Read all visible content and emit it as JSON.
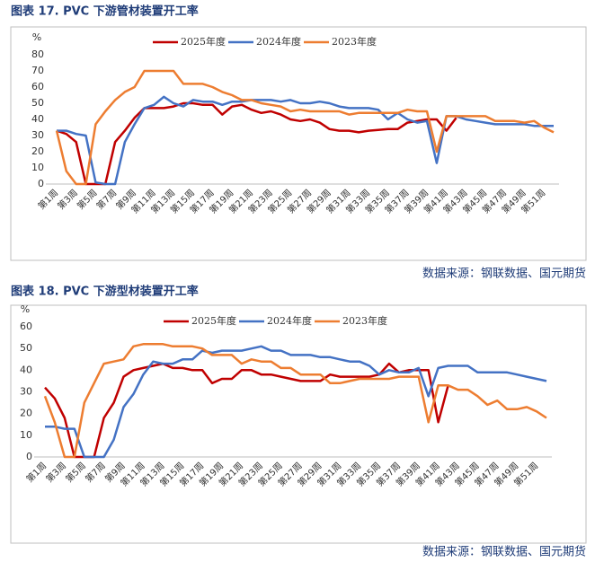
{
  "chart_data": [
    {
      "type": "line",
      "title": "图表 17. PVC 下游管材装置开工率",
      "source": "数据来源：钢联数据、国元期货",
      "y_unit": "%",
      "categories": [
        "第1周",
        null,
        "第3周",
        null,
        "第5周",
        null,
        "第7周",
        null,
        "第9周",
        null,
        "第11周",
        null,
        "第13周",
        null,
        "第15周",
        null,
        "第17周",
        null,
        "第19周",
        null,
        "第21周",
        null,
        "第23周",
        null,
        "第25周",
        null,
        "第27周",
        null,
        "第29周",
        null,
        "第31周",
        null,
        "第33周",
        null,
        "第35周",
        null,
        "第37周",
        null,
        "第39周",
        null,
        "第41周",
        null,
        "第43周",
        null,
        "第45周",
        null,
        "第47周",
        null,
        "第49周",
        null,
        "第51周",
        null
      ],
      "ylim": [
        0,
        80
      ],
      "yticks": [
        0,
        10,
        20,
        30,
        40,
        50,
        60,
        70,
        80
      ],
      "grid": false,
      "legend": "top",
      "series": [
        {
          "name": "2025年度",
          "color": "#c00000",
          "values": [
            33,
            31,
            26,
            0,
            0,
            0,
            26,
            33,
            41,
            47,
            47,
            47,
            48,
            50,
            50,
            49,
            49,
            43,
            48,
            49,
            46,
            44,
            45,
            43,
            40,
            39,
            40,
            38,
            34,
            33,
            33,
            32,
            33,
            33.5,
            34,
            34,
            38,
            39,
            40,
            40,
            33,
            41,
            null,
            null,
            null,
            null,
            null,
            null,
            null,
            null,
            null,
            null
          ]
        },
        {
          "name": "2024年度",
          "color": "#4472c4",
          "values": [
            33,
            33,
            31,
            30,
            1,
            0,
            0,
            26,
            37,
            47,
            49,
            54,
            50,
            48,
            52,
            51,
            51,
            49,
            51,
            51,
            52,
            52,
            52,
            51,
            52,
            50,
            50,
            51,
            50,
            48,
            47,
            47,
            47,
            46,
            40,
            44,
            40,
            38,
            39,
            13,
            42,
            42,
            40,
            39,
            38,
            37,
            37,
            37,
            37,
            36,
            36,
            36
          ]
        },
        {
          "name": "2023年度",
          "color": "#ed7d31",
          "values": [
            33,
            8,
            0,
            0,
            37,
            45,
            52,
            57,
            60,
            70,
            70,
            70,
            70,
            62,
            62,
            62,
            60,
            57,
            55,
            52,
            52,
            50,
            49,
            48,
            45,
            46,
            45,
            45,
            45,
            45,
            43,
            44,
            44,
            44,
            44,
            44,
            46,
            45,
            45,
            20,
            42,
            42,
            42,
            42,
            42,
            39,
            39,
            39,
            38,
            39,
            35,
            32
          ]
        }
      ]
    },
    {
      "type": "line",
      "title": "图表 18. PVC 下游型材装置开工率",
      "source": "数据来源：钢联数据、国元期货",
      "y_unit": "%",
      "categories": [
        "第1周",
        null,
        "第3周",
        null,
        "第5周",
        null,
        "第7周",
        null,
        "第9周",
        null,
        "第11周",
        null,
        "第13周",
        null,
        "第15周",
        null,
        "第17周",
        null,
        "第19周",
        null,
        "第21周",
        null,
        "第23周",
        null,
        "第25周",
        null,
        "第27周",
        null,
        "第29周",
        null,
        "第31周",
        null,
        "第33周",
        null,
        "第35周",
        null,
        "第37周",
        null,
        "第39周",
        null,
        "第41周",
        null,
        "第43周",
        null,
        "第45周",
        null,
        "第47周",
        null,
        "第49周",
        null,
        "第51周",
        null
      ],
      "ylim": [
        0,
        60
      ],
      "yticks": [
        0,
        10,
        20,
        30,
        40,
        50,
        60
      ],
      "grid": false,
      "legend": "top",
      "series": [
        {
          "name": "2025年度",
          "color": "#c00000",
          "values": [
            32,
            27,
            18,
            0,
            0,
            0,
            18,
            25,
            37,
            40,
            41,
            42,
            43,
            41,
            41,
            40,
            40,
            34,
            36,
            36,
            40,
            40,
            38,
            38,
            37,
            36,
            35,
            35,
            35,
            38,
            37,
            37,
            37,
            37,
            38,
            43,
            39,
            40,
            40,
            40,
            16,
            33,
            null,
            null,
            null,
            null,
            null,
            null,
            null,
            null,
            null,
            null
          ]
        },
        {
          "name": "2024年度",
          "color": "#4472c4",
          "values": [
            14,
            14,
            13,
            13,
            0,
            0,
            0,
            8,
            23,
            29,
            38,
            44,
            43,
            43,
            45,
            45,
            49,
            48,
            49,
            49,
            49,
            50,
            51,
            49,
            49,
            47,
            47,
            47,
            46,
            46,
            45,
            44,
            44,
            42,
            38,
            40,
            39,
            39,
            41,
            28,
            41,
            42,
            42,
            42,
            39,
            39,
            39,
            39,
            38,
            37,
            36,
            35
          ]
        },
        {
          "name": "2023年度",
          "color": "#ed7d31",
          "values": [
            28,
            16,
            0,
            0,
            25,
            34,
            43,
            44,
            45,
            51,
            52,
            52,
            52,
            51,
            51,
            51,
            50,
            47,
            47,
            47,
            43,
            45,
            44,
            44,
            41,
            41,
            38,
            38,
            38,
            34,
            34,
            35,
            36,
            36,
            36,
            36,
            37,
            37,
            37,
            16,
            33,
            33,
            31,
            31,
            28,
            24,
            26,
            22,
            22,
            23,
            21,
            18
          ]
        }
      ]
    }
  ]
}
